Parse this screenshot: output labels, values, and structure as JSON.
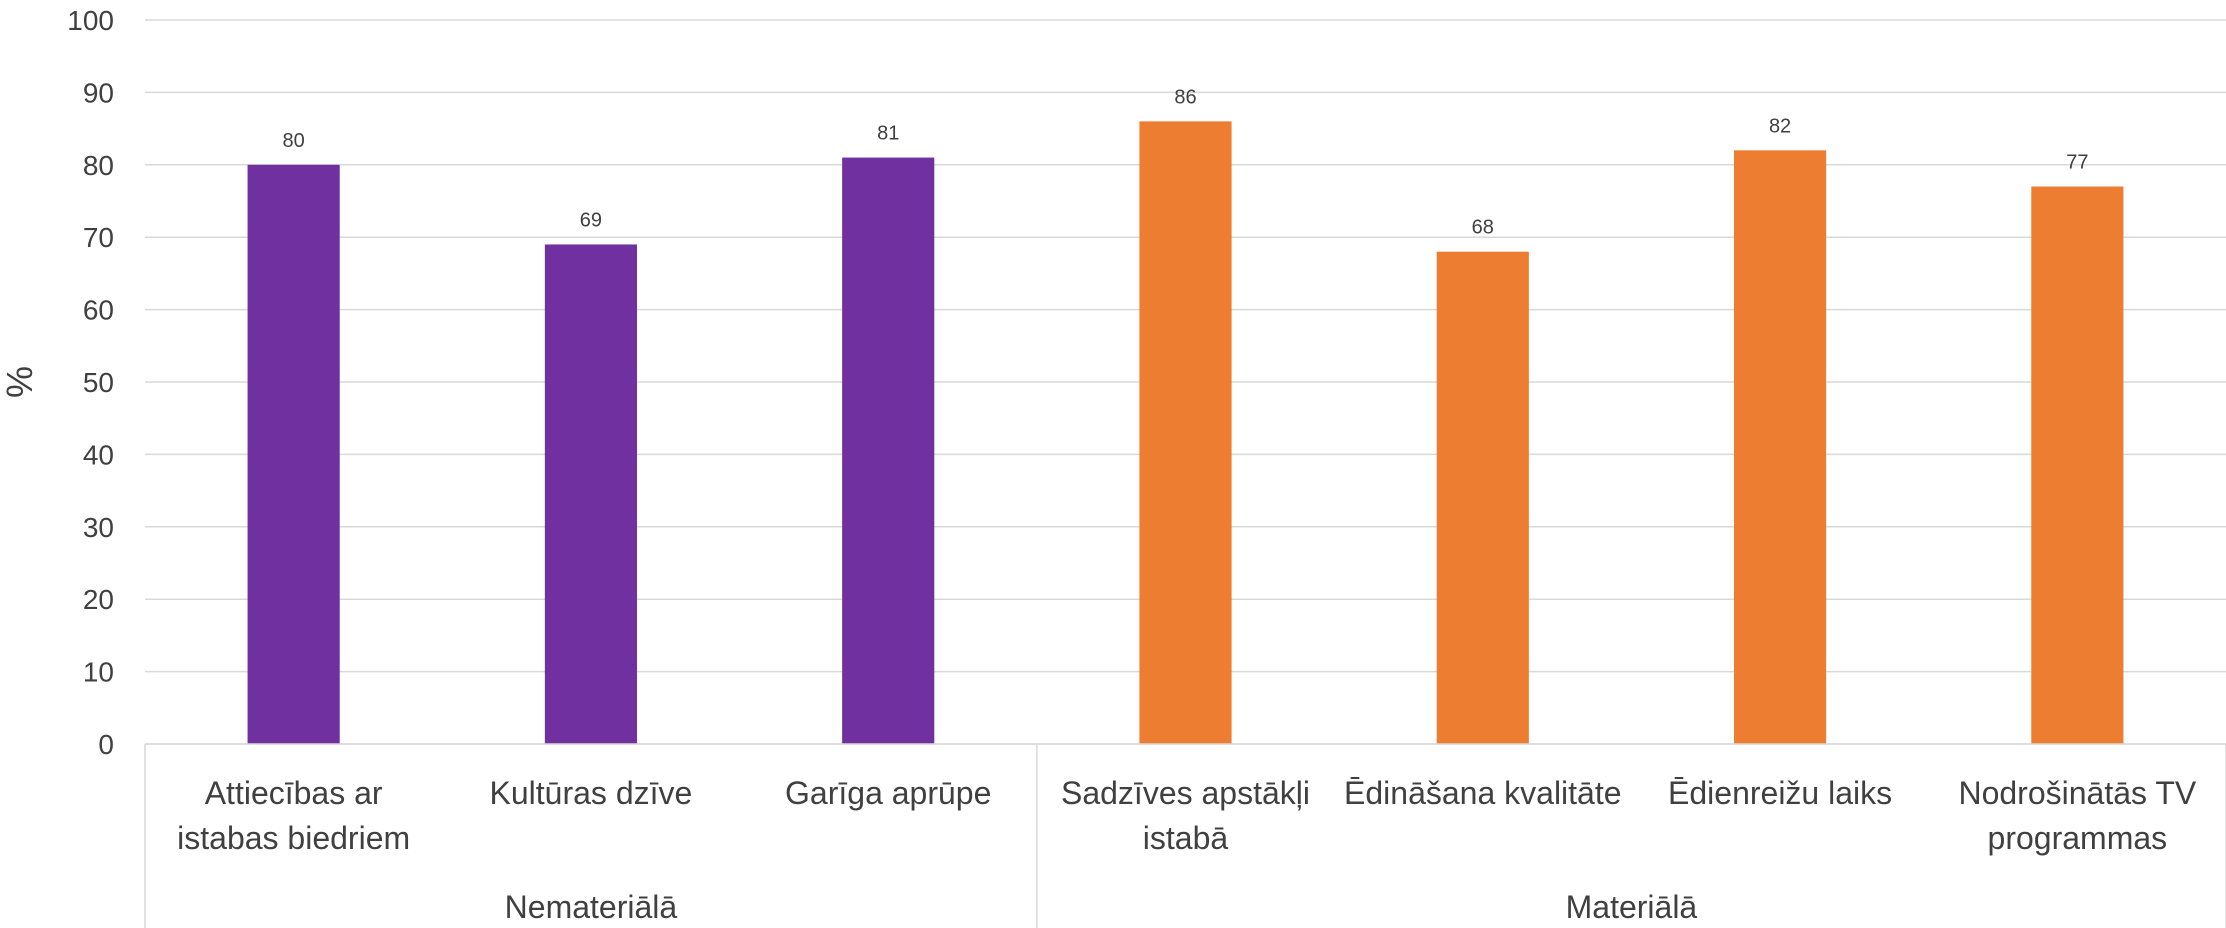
{
  "chart_data": {
    "type": "bar",
    "ylabel": "%",
    "ylim": [
      0,
      100
    ],
    "yticks": [
      0,
      10,
      20,
      30,
      40,
      50,
      60,
      70,
      80,
      90,
      100
    ],
    "grid": true,
    "groups": [
      {
        "label": "Nemateriālā",
        "color": "#7030a0",
        "categories": [
          [
            "Attiecības ar",
            "istabas biedriem"
          ],
          [
            "Kultūras dzīve"
          ],
          [
            "Garīga aprūpe"
          ]
        ],
        "values": [
          80,
          69,
          81
        ]
      },
      {
        "label": "Materiālā",
        "color": "#ed7d31",
        "categories": [
          [
            "Sadzīves apstākļi",
            "istabā"
          ],
          [
            "Ēdināšana kvalitāte"
          ],
          [
            "Ēdienreižu laiks"
          ],
          [
            "Nodrošinātās TV",
            "programmas"
          ]
        ],
        "values": [
          86,
          68,
          82,
          77
        ]
      }
    ]
  }
}
